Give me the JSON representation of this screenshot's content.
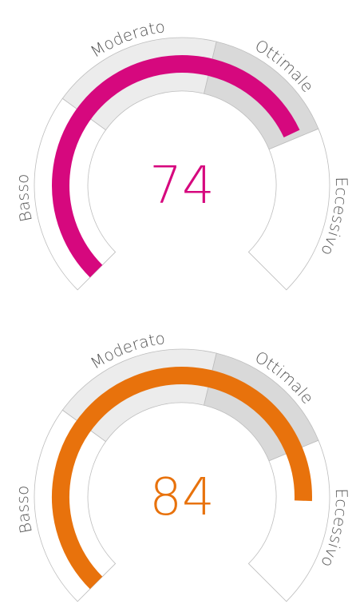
{
  "chart_data": {
    "type": "gauge",
    "bounds": [
      0,
      30,
      55,
      75,
      100
    ],
    "zones": [
      {
        "name": "Basso",
        "color": "#ffffff"
      },
      {
        "name": "Moderato",
        "color": "#ececec"
      },
      {
        "name": "Ottimale",
        "color": "#d9d9d9"
      },
      {
        "name": "Eccessivo",
        "color": "#ffffff"
      }
    ],
    "gauges": [
      {
        "value": 74,
        "color": "#d6087e"
      },
      {
        "value": 84,
        "color": "#e8720c"
      }
    ]
  }
}
